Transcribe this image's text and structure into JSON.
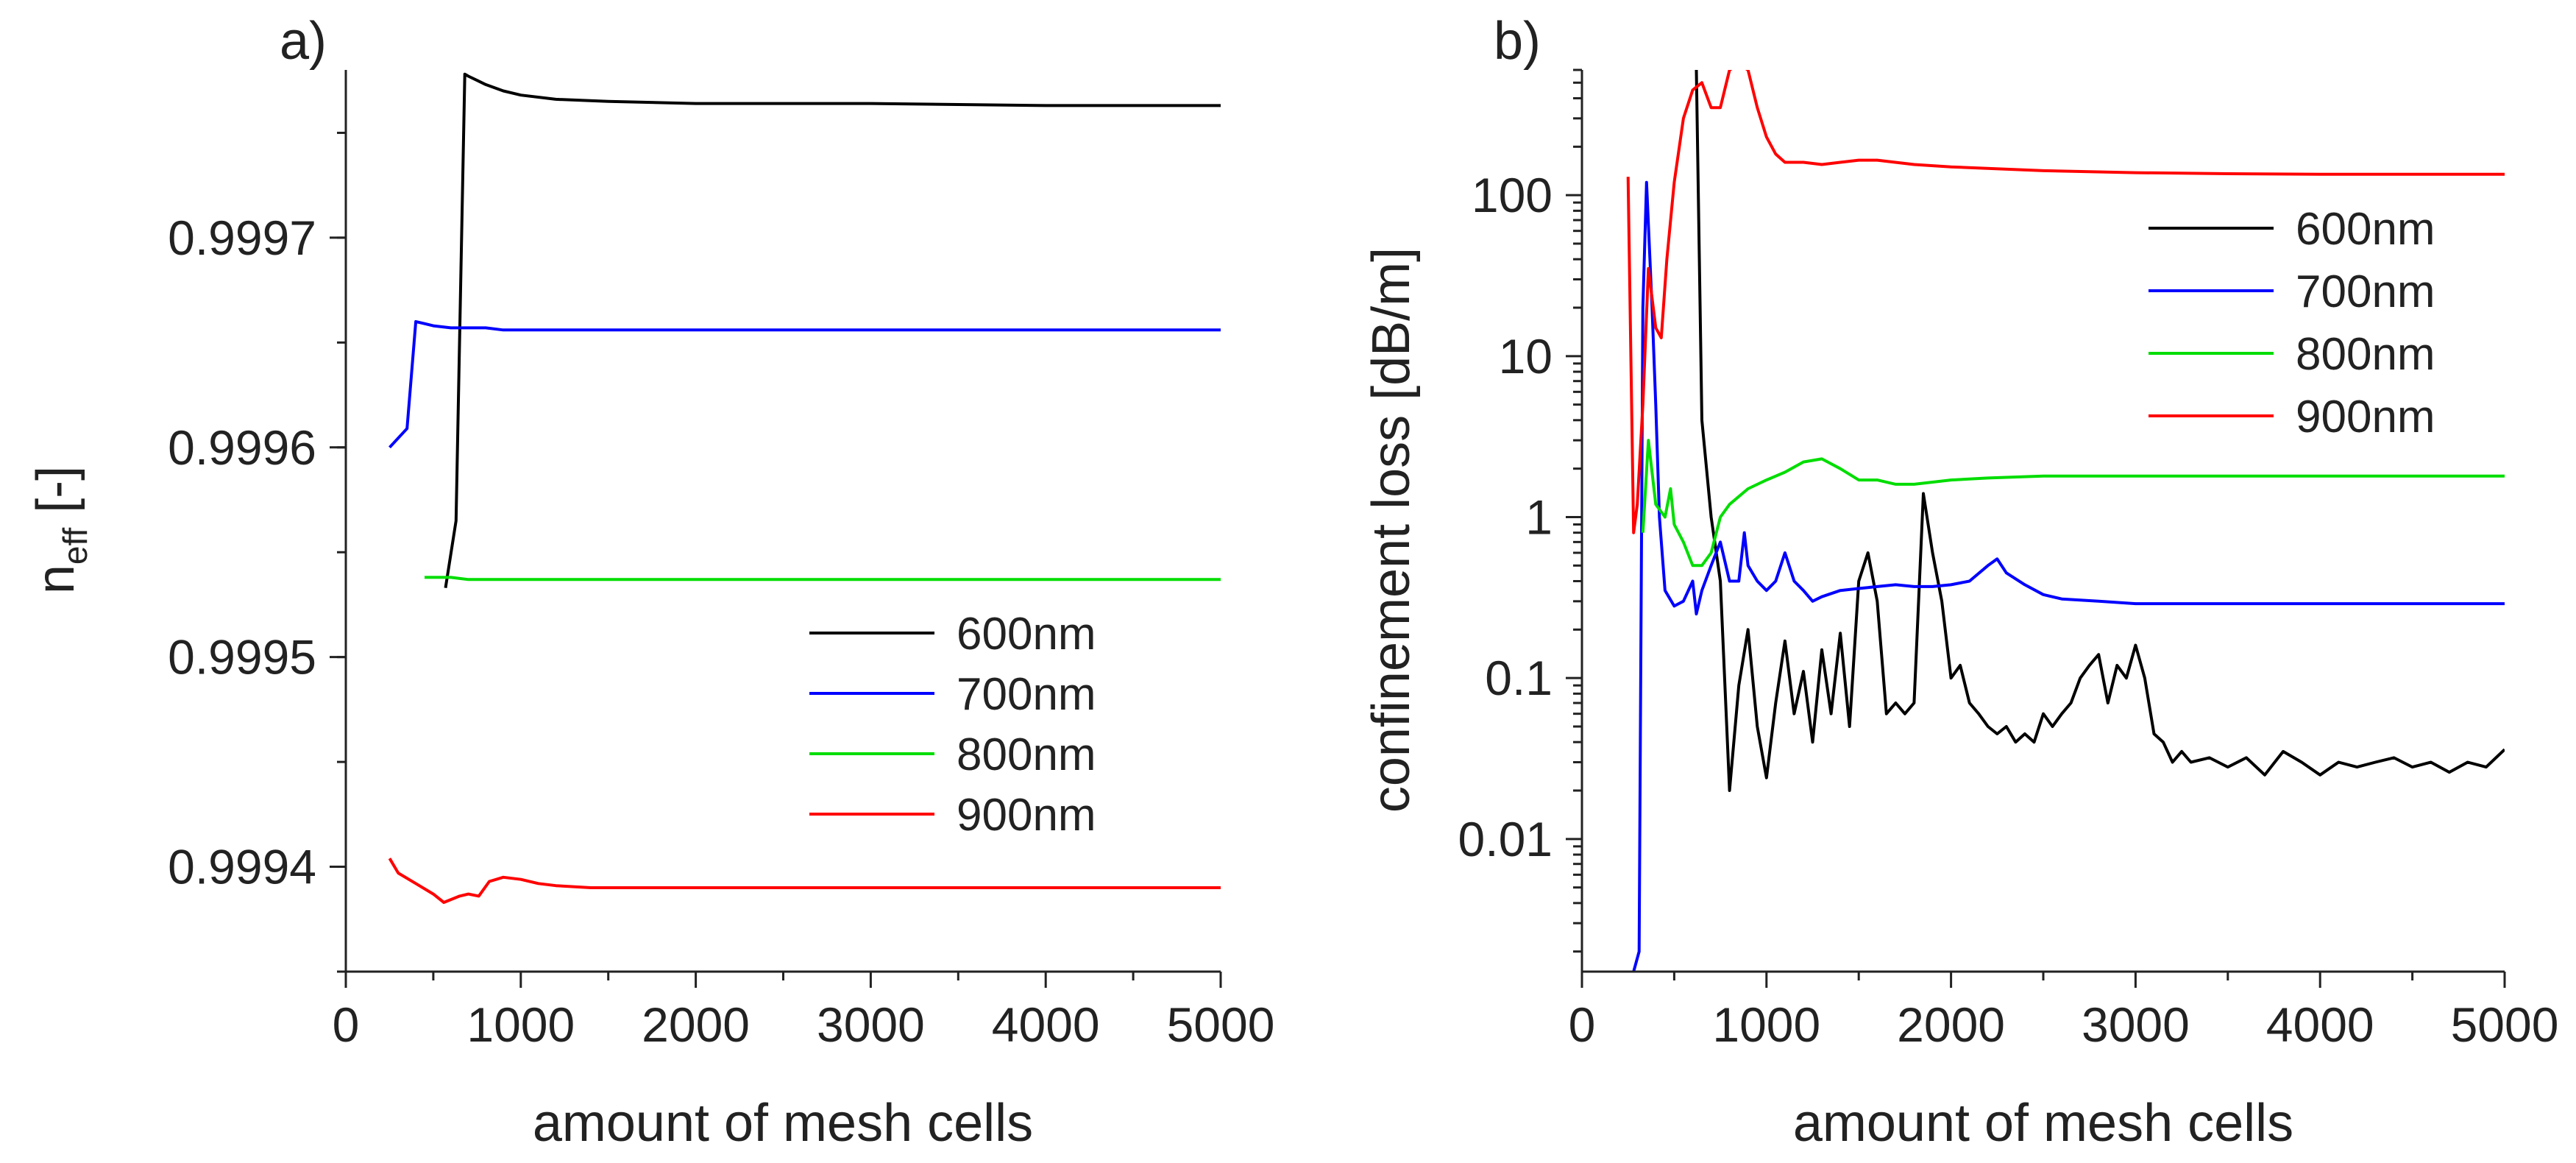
{
  "chart_data": [
    {
      "type": "line",
      "panel_label": "a)",
      "xlabel": "amount of mesh cells",
      "ylabel_main": "n",
      "ylabel_sub": "eff",
      "ylabel_unit": " [-]",
      "xlim": [
        0,
        5000
      ],
      "ylim": [
        0.99935,
        0.99978
      ],
      "x_ticks": [
        0,
        1000,
        2000,
        3000,
        4000,
        5000
      ],
      "x_tick_labels": [
        "0",
        "1000",
        "2000",
        "3000",
        "4000",
        "5000"
      ],
      "y_ticks": [
        0.9994,
        0.9995,
        0.9996,
        0.9997
      ],
      "y_tick_labels": [
        "0.9994",
        "0.9995",
        "0.9996",
        "0.9997"
      ],
      "legend_position": "center-right",
      "series": [
        {
          "name": "600nm",
          "color": "#000000",
          "x": [
            570,
            630,
            680,
            700,
            750,
            800,
            900,
            1000,
            1200,
            1500,
            2000,
            3000,
            4000,
            5000
          ],
          "y": [
            0.999533,
            0.999565,
            0.999778,
            0.999777,
            0.999775,
            0.999773,
            0.99977,
            0.999768,
            0.999766,
            0.999765,
            0.999764,
            0.999764,
            0.999763,
            0.999763
          ]
        },
        {
          "name": "700nm",
          "color": "#0000ff",
          "x": [
            250,
            350,
            400,
            450,
            500,
            600,
            700,
            800,
            900,
            1000,
            2000,
            3000,
            4000,
            5000
          ],
          "y": [
            0.9996,
            0.999609,
            0.99966,
            0.999659,
            0.999658,
            0.999657,
            0.999657,
            0.999657,
            0.999656,
            0.999656,
            0.999656,
            0.999656,
            0.999656,
            0.999656
          ]
        },
        {
          "name": "800nm",
          "color": "#00dd00",
          "x": [
            450,
            600,
            700,
            900,
            1000,
            2000,
            3000,
            4000,
            5000
          ],
          "y": [
            0.999538,
            0.999538,
            0.999537,
            0.999537,
            0.999537,
            0.999537,
            0.999537,
            0.999537,
            0.999537
          ]
        },
        {
          "name": "900nm",
          "color": "#ff0000",
          "x": [
            250,
            300,
            400,
            500,
            560,
            650,
            700,
            760,
            820,
            900,
            1000,
            1100,
            1200,
            1400,
            1600,
            2000,
            3000,
            4000,
            5000
          ],
          "y": [
            0.999404,
            0.999397,
            0.999392,
            0.999387,
            0.999383,
            0.999386,
            0.999387,
            0.999386,
            0.999393,
            0.999395,
            0.999394,
            0.999392,
            0.999391,
            0.99939,
            0.99939,
            0.99939,
            0.99939,
            0.99939,
            0.99939
          ]
        }
      ]
    },
    {
      "type": "line",
      "yscale": "log",
      "panel_label": "b)",
      "xlabel": "amount of mesh cells",
      "ylabel": "confinement loss [dB/m]",
      "xlim": [
        0,
        5000
      ],
      "ylim": [
        0.0015,
        600
      ],
      "x_ticks": [
        0,
        1000,
        2000,
        3000,
        4000,
        5000
      ],
      "x_tick_labels": [
        "0",
        "1000",
        "2000",
        "3000",
        "4000",
        "5000"
      ],
      "y_ticks": [
        0.01,
        0.1,
        1,
        10,
        100
      ],
      "y_tick_labels": [
        "0.01",
        "0.1",
        "1",
        "10",
        "100"
      ],
      "legend_position": "top-right",
      "series": [
        {
          "name": "600nm",
          "color": "#000000",
          "x": [
            620,
            650,
            700,
            750,
            800,
            850,
            900,
            950,
            1000,
            1050,
            1100,
            1150,
            1200,
            1250,
            1300,
            1350,
            1400,
            1450,
            1500,
            1550,
            1600,
            1650,
            1700,
            1750,
            1800,
            1850,
            1900,
            1950,
            2000,
            2050,
            2100,
            2150,
            2200,
            2250,
            2300,
            2350,
            2400,
            2450,
            2500,
            2550,
            2600,
            2650,
            2700,
            2750,
            2800,
            2850,
            2900,
            2950,
            3000,
            3050,
            3100,
            3150,
            3200,
            3250,
            3300,
            3400,
            3500,
            3600,
            3700,
            3800,
            3900,
            4000,
            4100,
            4200,
            4300,
            4400,
            4500,
            4600,
            4700,
            4800,
            4900,
            5000
          ],
          "y": [
            600,
            4,
            1.0,
            0.4,
            0.02,
            0.09,
            0.2,
            0.05,
            0.024,
            0.07,
            0.17,
            0.06,
            0.11,
            0.04,
            0.15,
            0.06,
            0.19,
            0.05,
            0.4,
            0.6,
            0.3,
            0.06,
            0.07,
            0.06,
            0.07,
            1.4,
            0.6,
            0.3,
            0.1,
            0.12,
            0.07,
            0.06,
            0.05,
            0.045,
            0.05,
            0.04,
            0.045,
            0.04,
            0.06,
            0.05,
            0.06,
            0.07,
            0.1,
            0.12,
            0.14,
            0.07,
            0.12,
            0.1,
            0.16,
            0.1,
            0.045,
            0.04,
            0.03,
            0.035,
            0.03,
            0.032,
            0.028,
            0.032,
            0.025,
            0.035,
            0.03,
            0.025,
            0.03,
            0.028,
            0.03,
            0.032,
            0.028,
            0.03,
            0.026,
            0.03,
            0.028,
            0.036
          ]
        },
        {
          "name": "700nm",
          "color": "#0000ff",
          "x": [
            280,
            310,
            330,
            350,
            380,
            400,
            420,
            450,
            500,
            550,
            600,
            620,
            650,
            700,
            750,
            800,
            850,
            880,
            900,
            950,
            1000,
            1050,
            1100,
            1150,
            1200,
            1250,
            1300,
            1400,
            1500,
            1600,
            1700,
            1800,
            1900,
            2000,
            2100,
            2200,
            2250,
            2300,
            2400,
            2500,
            2600,
            2800,
            3000,
            3200,
            3400,
            4000,
            4500,
            5000
          ],
          "y": [
            0.0015,
            0.002,
            20,
            120,
            20,
            5,
            1.0,
            0.35,
            0.28,
            0.3,
            0.4,
            0.25,
            0.35,
            0.5,
            0.7,
            0.4,
            0.4,
            0.8,
            0.5,
            0.4,
            0.35,
            0.4,
            0.6,
            0.4,
            0.35,
            0.3,
            0.32,
            0.35,
            0.36,
            0.37,
            0.38,
            0.37,
            0.37,
            0.38,
            0.4,
            0.5,
            0.55,
            0.45,
            0.38,
            0.33,
            0.31,
            0.3,
            0.29,
            0.29,
            0.29,
            0.29,
            0.29,
            0.29
          ]
        },
        {
          "name": "800nm",
          "color": "#00dd00",
          "x": [
            330,
            360,
            400,
            450,
            480,
            500,
            550,
            600,
            650,
            700,
            750,
            800,
            900,
            1000,
            1100,
            1200,
            1300,
            1400,
            1500,
            1600,
            1700,
            1800,
            2000,
            2200,
            2500,
            3000,
            3500,
            4000,
            4500,
            5000
          ],
          "y": [
            0.8,
            3.0,
            1.2,
            1.0,
            1.5,
            0.9,
            0.7,
            0.5,
            0.5,
            0.6,
            1.0,
            1.2,
            1.5,
            1.7,
            1.9,
            2.2,
            2.3,
            2.0,
            1.7,
            1.7,
            1.6,
            1.6,
            1.7,
            1.75,
            1.8,
            1.8,
            1.8,
            1.8,
            1.8,
            1.8
          ]
        },
        {
          "name": "900nm",
          "color": "#ff0000",
          "x": [
            250,
            280,
            300,
            330,
            360,
            400,
            430,
            460,
            500,
            550,
            600,
            650,
            700,
            750,
            800,
            850,
            900,
            950,
            1000,
            1050,
            1100,
            1200,
            1300,
            1400,
            1500,
            1600,
            1800,
            2000,
            2500,
            3000,
            3500,
            4000,
            5000
          ],
          "y": [
            130,
            0.8,
            1.2,
            5,
            35,
            15,
            13,
            40,
            120,
            300,
            450,
            500,
            350,
            350,
            600,
            650,
            600,
            350,
            230,
            180,
            160,
            160,
            155,
            160,
            165,
            165,
            155,
            150,
            142,
            138,
            136,
            135,
            135
          ]
        }
      ]
    }
  ]
}
